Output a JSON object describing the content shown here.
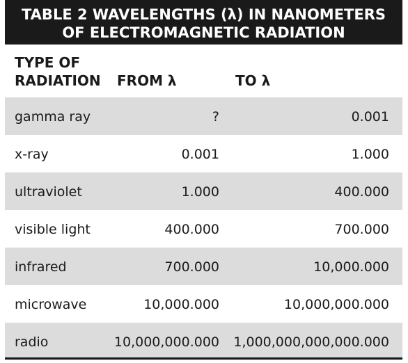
{
  "header": {
    "title": [
      "TABLE 2   WAVELENGTHS (λ) IN NANOMETERS",
      "OF ELECTROMAGNETIC RADIATION"
    ]
  },
  "table": {
    "columns": [
      [
        "TYPE OF",
        "RADIATION"
      ],
      "FROM λ",
      "TO λ"
    ],
    "rows": [
      [
        "gamma ray",
        "?",
        "0.001"
      ],
      [
        "x-ray",
        "0.001",
        "1.000"
      ],
      [
        "ultraviolet",
        "1.000",
        "400.000"
      ],
      [
        "visible light",
        "400.000",
        "700.000"
      ],
      [
        "infrared",
        "700.000",
        "10,000.000"
      ],
      [
        "microwave",
        "10,000.000",
        "10,000,000.000"
      ],
      [
        "radio",
        "10,000,000.000",
        "1,000,000,000,000.000"
      ]
    ]
  }
}
